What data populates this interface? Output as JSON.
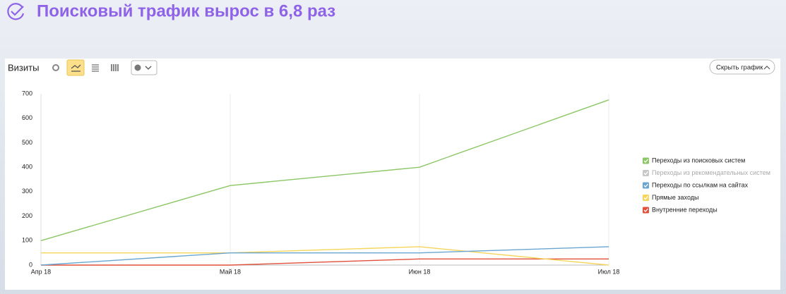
{
  "header": {
    "title": "Поисковый трафик вырос в 6,8 раз"
  },
  "toolbar": {
    "hide_button": "Скрыть график"
  },
  "chart_data": {
    "type": "line",
    "title": "Визиты",
    "categories": [
      "Апр 18",
      "Май 18",
      "Июн 18",
      "Июл 18"
    ],
    "series": [
      {
        "name": "Переходы из поисковых систем",
        "color": "#8cc665",
        "values": [
          100,
          325,
          400,
          675
        ],
        "enabled": true
      },
      {
        "name": "Переходы из рекомендательных систем",
        "color": "#c8c8c8",
        "values": [
          null,
          null,
          null,
          null
        ],
        "enabled": false
      },
      {
        "name": "Переходы по ссылкам на сайтах",
        "color": "#6aa6d0",
        "values": [
          0,
          50,
          50,
          75
        ],
        "enabled": true
      },
      {
        "name": "Прямые заходы",
        "color": "#f6d55c",
        "values": [
          50,
          50,
          75,
          0
        ],
        "enabled": true
      },
      {
        "name": "Внутренние переходы",
        "color": "#e0503a",
        "values": [
          0,
          0,
          25,
          25
        ],
        "enabled": true
      }
    ],
    "ylim": [
      0,
      700
    ],
    "yticks": [
      0,
      100,
      200,
      300,
      400,
      500,
      600,
      700
    ],
    "grid": "x"
  }
}
